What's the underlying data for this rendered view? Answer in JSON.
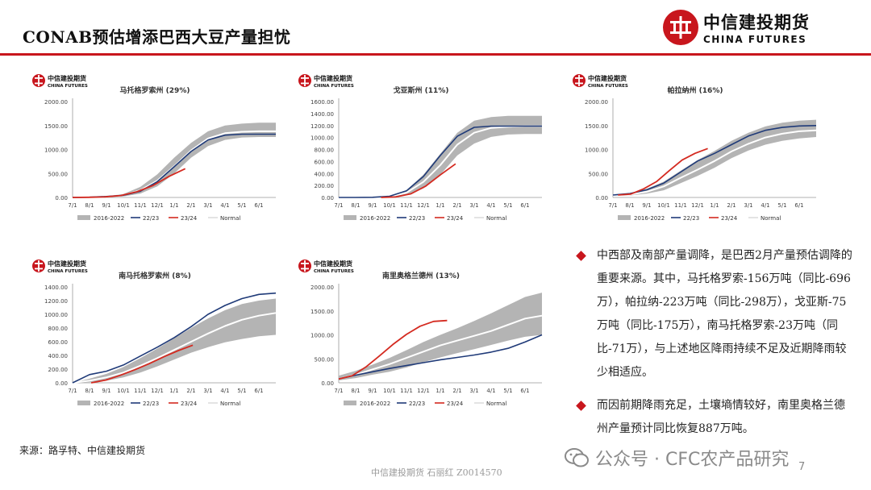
{
  "page": {
    "title": "CONAB预估增添巴西大豆产量担忧",
    "brand_cn": "中信建投期货",
    "brand_en": "CHINA FUTURES",
    "source": "来源：路孚特、中信建投期货",
    "footer": "中信建投期货 石丽红 Z0014570",
    "watermark": "公众号 · CFC农产品研究",
    "page_number": "7",
    "accent_color": "#c8161d"
  },
  "bullets": [
    "中西部及南部产量调降，是巴西2月产量预估调降的重要来源。其中，马托格罗索-156万吨（同比-696万），帕拉纳-223万吨（同比-298万），戈亚斯-75万吨（同比-175万），南马托格罗索-23万吨（同比-71万），与上述地区降雨持续不足及近期降雨较少相适应。",
    "而因前期降雨充足，土壤墒情较好，南里奥格兰德州产量预计同比恢复887万吨。"
  ],
  "chart_data": [
    {
      "type": "line",
      "title": "马托格罗索州 (29%)",
      "logo_cn": "中信建投期货",
      "logo_en": "CHINA FUTURES",
      "x": [
        "7/1",
        "8/1",
        "9/1",
        "10/1",
        "11/1",
        "12/1",
        "1/1",
        "2/1",
        "3/1",
        "4/1",
        "5/1",
        "6/1"
      ],
      "ylim": [
        0,
        2000
      ],
      "yticks": [
        "2000.00",
        "1500.00",
        "1000.00",
        "500.00",
        "0.00"
      ],
      "legend": [
        "2016-2022",
        "22/23",
        "23/24",
        "Normal"
      ],
      "band_low": [
        0,
        0,
        5,
        20,
        80,
        230,
        500,
        830,
        1070,
        1200,
        1250,
        1260,
        1260
      ],
      "band_high": [
        0,
        8,
        25,
        70,
        220,
        480,
        830,
        1140,
        1380,
        1500,
        1540,
        1560,
        1560
      ],
      "normal": [
        0,
        4,
        15,
        45,
        150,
        350,
        650,
        980,
        1230,
        1340,
        1370,
        1380,
        1380
      ],
      "series_2223": [
        0,
        5,
        20,
        45,
        130,
        330,
        640,
        960,
        1200,
        1300,
        1320,
        1320,
        1320
      ],
      "series_2324": {
        "start": 0.0,
        "end": 6.65,
        "values": [
          0,
          3,
          12,
          40,
          120,
          250,
          440,
          600
        ]
      }
    },
    {
      "type": "line",
      "title": "戈亚斯州 (11%)",
      "logo_cn": "中信建投期货",
      "logo_en": "CHINA FUTURES",
      "x": [
        "7/1",
        "8/1",
        "9/1",
        "10/1",
        "11/1",
        "12/1",
        "1/1",
        "2/1",
        "3/1",
        "4/1",
        "5/1",
        "6/1"
      ],
      "ylim": [
        0,
        1600
      ],
      "yticks": [
        "1600.00",
        "1400.00",
        "1200.00",
        "1000.00",
        "800.00",
        "600.00",
        "400.00",
        "200.00",
        "0.00"
      ],
      "legend": [
        "2016-2022",
        "22/23",
        "23/24",
        "Normal"
      ],
      "band_low": [
        0,
        0,
        0,
        5,
        40,
        150,
        380,
        700,
        900,
        1010,
        1050,
        1060,
        1060
      ],
      "band_high": [
        0,
        0,
        5,
        25,
        120,
        380,
        730,
        1080,
        1280,
        1340,
        1360,
        1360,
        1360
      ],
      "normal": [
        0,
        0,
        3,
        15,
        80,
        260,
        540,
        880,
        1080,
        1160,
        1180,
        1190,
        1190
      ],
      "series_2223": [
        0,
        0,
        3,
        20,
        110,
        350,
        700,
        1020,
        1170,
        1190,
        1190,
        1190,
        1190
      ],
      "series_2324": {
        "start": 2.5,
        "end": 6.9,
        "values": [
          0,
          10,
          60,
          190,
          380,
          560
        ]
      }
    },
    {
      "type": "line",
      "title": "帕拉纳州 (16%)",
      "logo_cn": "中信建投期货",
      "logo_en": "CHINA FUTURES",
      "x": [
        "7/1",
        "8/1",
        "9/1",
        "10/1",
        "11/1",
        "12/1",
        "1/1",
        "2/1",
        "3/1",
        "4/1",
        "5/1",
        "6/1"
      ],
      "ylim": [
        0,
        2000
      ],
      "yticks": [
        "2000.00",
        "1500.00",
        "1000.00",
        "500.00",
        "0.00"
      ],
      "legend": [
        "2016-2022",
        "22/23",
        "23/24",
        "Normal"
      ],
      "band_low": [
        30,
        40,
        80,
        150,
        300,
        450,
        620,
        820,
        980,
        1100,
        1180,
        1230,
        1260
      ],
      "band_high": [
        60,
        90,
        180,
        330,
        560,
        780,
        970,
        1180,
        1350,
        1480,
        1560,
        1600,
        1620
      ],
      "normal": [
        40,
        60,
        120,
        230,
        410,
        580,
        760,
        960,
        1120,
        1250,
        1330,
        1380,
        1400
      ],
      "series_2223": [
        50,
        80,
        160,
        300,
        530,
        760,
        920,
        1100,
        1280,
        1400,
        1460,
        1490,
        1500
      ],
      "series_2324": {
        "start": 0.3,
        "end": 5.6,
        "values": [
          50,
          70,
          180,
          330,
          560,
          780,
          920,
          1020
        ]
      }
    },
    {
      "type": "line",
      "title": "南马托格罗索州 (8%)",
      "logo_cn": "中信建投期货",
      "logo_en": "CHINA FUTURES",
      "x": [
        "7/1",
        "8/1",
        "9/1",
        "10/1",
        "11/1",
        "12/1",
        "1/1",
        "2/1",
        "3/1",
        "4/1",
        "5/1",
        "6/1"
      ],
      "ylim": [
        0,
        1400
      ],
      "yticks": [
        "1400.00",
        "1200.00",
        "1000.00",
        "800.00",
        "600.00",
        "400.00",
        "200.00",
        "0.00"
      ],
      "legend": [
        "2016-2022",
        "22/23",
        "23/24",
        "Normal"
      ],
      "band_low": [
        0,
        10,
        30,
        80,
        150,
        240,
        340,
        440,
        520,
        590,
        640,
        680,
        700
      ],
      "band_high": [
        0,
        60,
        130,
        230,
        360,
        500,
        650,
        800,
        940,
        1060,
        1150,
        1200,
        1230
      ],
      "normal": [
        0,
        30,
        80,
        150,
        250,
        360,
        480,
        600,
        720,
        830,
        920,
        980,
        1020
      ],
      "series_2223": [
        0,
        120,
        170,
        260,
        390,
        520,
        660,
        820,
        1000,
        1130,
        1230,
        1290,
        1310
      ],
      "series_2324": {
        "start": 1.1,
        "end": 7.1,
        "values": [
          0,
          40,
          110,
          190,
          280,
          380,
          470,
          550
        ]
      }
    },
    {
      "type": "line",
      "title": "南里奥格兰德州 (13%)",
      "logo_cn": "中信建投期货",
      "logo_en": "CHINA FUTURES",
      "x": [
        "7/1",
        "8/1",
        "9/1",
        "10/1",
        "11/1",
        "12/1",
        "1/1",
        "2/1",
        "3/1",
        "4/1",
        "5/1",
        "6/1"
      ],
      "ylim": [
        0,
        2000
      ],
      "yticks": [
        "2000.00",
        "1500.00",
        "1000.00",
        "500.00",
        "0.00"
      ],
      "legend": [
        "2016-2022",
        "22/23",
        "23/24",
        "Normal"
      ],
      "band_low": [
        50,
        100,
        170,
        230,
        320,
        430,
        530,
        620,
        700,
        790,
        880,
        960,
        1000
      ],
      "band_high": [
        150,
        250,
        380,
        520,
        680,
        850,
        1000,
        1140,
        1290,
        1450,
        1620,
        1790,
        1880
      ],
      "normal": [
        80,
        170,
        280,
        390,
        520,
        650,
        780,
        880,
        980,
        1080,
        1210,
        1340,
        1400
      ],
      "series_2223": [
        80,
        160,
        230,
        300,
        360,
        420,
        480,
        530,
        580,
        640,
        720,
        850,
        1000
      ],
      "series_2324": {
        "start": 0.0,
        "end": 6.4,
        "values": [
          80,
          150,
          330,
          560,
          800,
          1010,
          1180,
          1280,
          1300
        ]
      }
    }
  ]
}
